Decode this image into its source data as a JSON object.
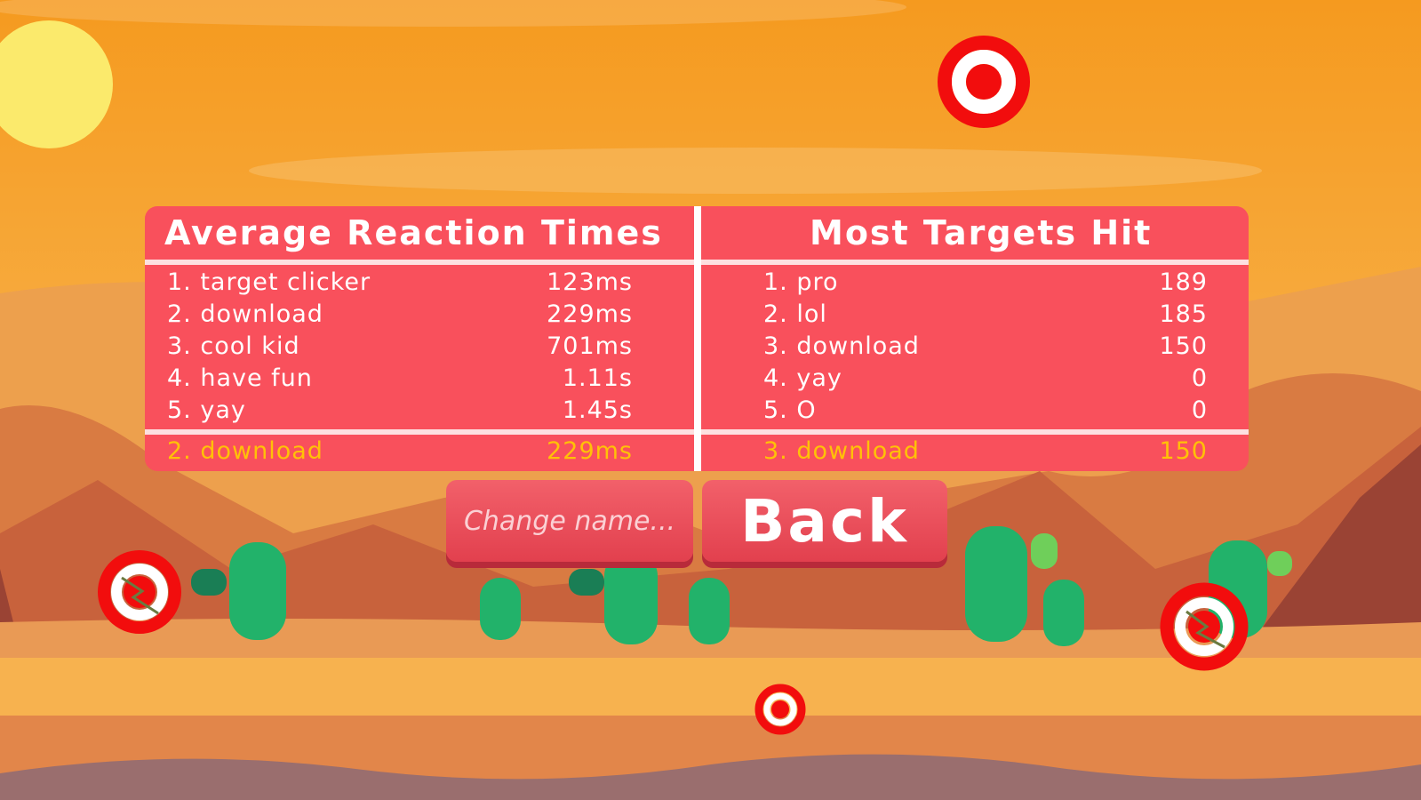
{
  "leaderboard": {
    "reaction": {
      "title": "Average Reaction Times",
      "rows": [
        {
          "label": "1. target clicker",
          "value": "123ms"
        },
        {
          "label": "2. download",
          "value": "229ms"
        },
        {
          "label": "3. cool kid",
          "value": "701ms"
        },
        {
          "label": "4. have fun",
          "value": "1.11s"
        },
        {
          "label": "5. yay",
          "value": "1.45s"
        }
      ],
      "own": {
        "label": "2. download",
        "value": "229ms"
      }
    },
    "targets": {
      "title": "Most Targets Hit",
      "rows": [
        {
          "label": "1. pro",
          "value": "189"
        },
        {
          "label": "2. lol",
          "value": "185"
        },
        {
          "label": "3. download",
          "value": "150"
        },
        {
          "label": "4. yay",
          "value": "0"
        },
        {
          "label": "5. O",
          "value": "0"
        }
      ],
      "own": {
        "label": "3. download",
        "value": "150"
      }
    }
  },
  "buttons": {
    "change_name": "Change name...",
    "back": "Back"
  },
  "colors": {
    "panel": "#f9505c",
    "highlight": "#ffc107",
    "target": "#f20d0d"
  }
}
